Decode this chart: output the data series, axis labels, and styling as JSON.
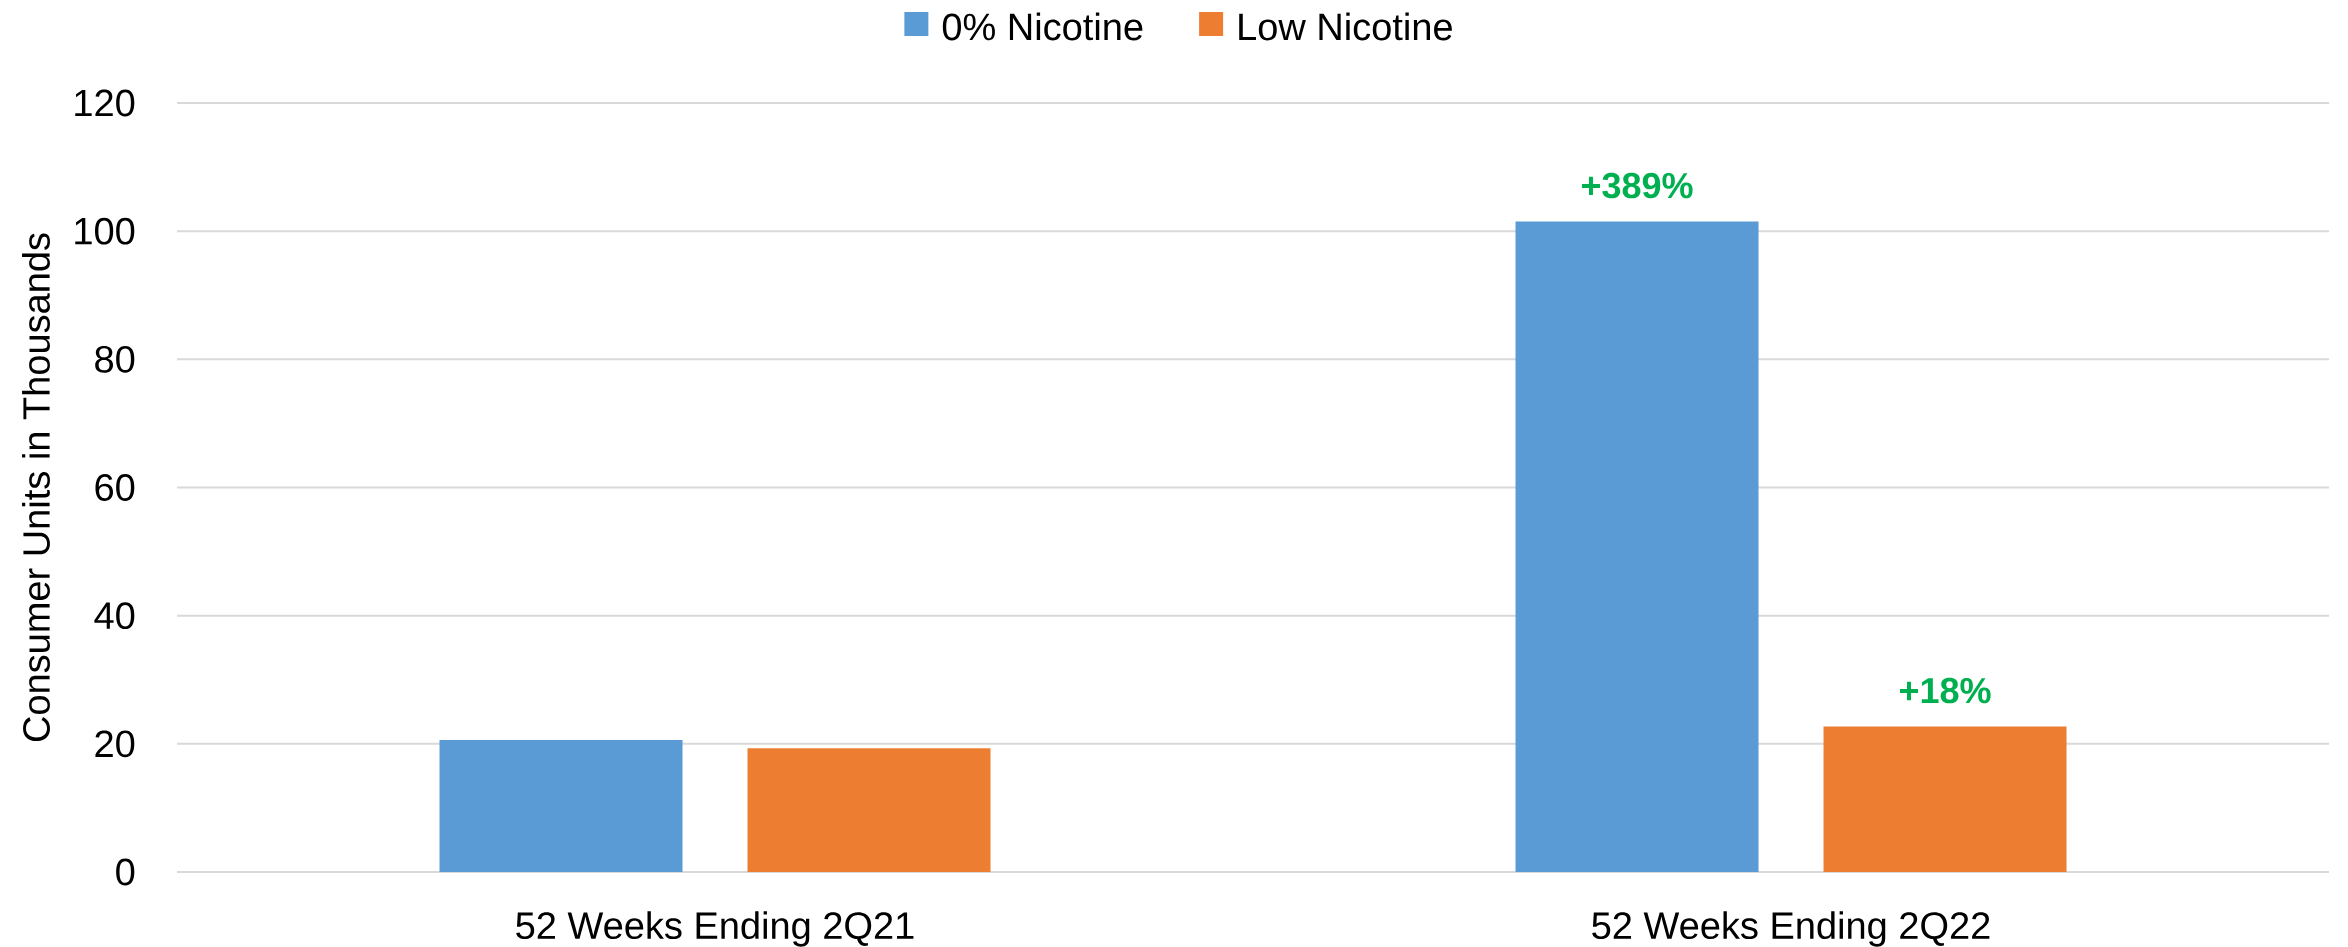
{
  "chart_data": {
    "type": "bar",
    "categories": [
      "52 Weeks Ending 2Q21",
      "52 Weeks Ending 2Q22"
    ],
    "series": [
      {
        "name": "0% Nicotine",
        "color": "#5b9bd5",
        "values": [
          20.6,
          101.5
        ]
      },
      {
        "name": "Low Nicotine",
        "color": "#ed7d31",
        "values": [
          19.3,
          22.7
        ]
      }
    ],
    "annotations": [
      "+389%",
      "+18%"
    ],
    "ylabel": "Consumer Units in Thousands",
    "ylim": [
      0,
      120
    ],
    "yticks": [
      0,
      20,
      40,
      60,
      80,
      100,
      120
    ],
    "grid": "y",
    "legend": "top"
  }
}
